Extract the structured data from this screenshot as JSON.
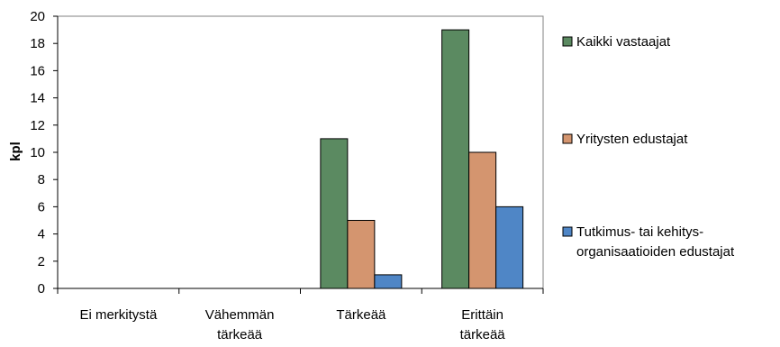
{
  "chart_data": {
    "type": "bar",
    "title": "",
    "xlabel": "",
    "ylabel": "kpl",
    "ylim": [
      0,
      20
    ],
    "yticks": [
      0,
      2,
      4,
      6,
      8,
      10,
      12,
      14,
      16,
      18,
      20
    ],
    "grid": false,
    "legend_position": "right",
    "categories": [
      [
        "Ei merkitystä"
      ],
      [
        "Vähemmän",
        "tärkeää"
      ],
      [
        "Tärkeää"
      ],
      [
        "Erittäin",
        "tärkeää"
      ]
    ],
    "series": [
      {
        "name": [
          "Kaikki vastaajat"
        ],
        "color": "#5b8a61",
        "values": [
          0,
          0,
          11,
          19
        ]
      },
      {
        "name": [
          "Yritysten edustajat"
        ],
        "color": "#d4956f",
        "values": [
          0,
          0,
          5,
          10
        ]
      },
      {
        "name": [
          "Tutkimus- tai kehitys-",
          "organisaatioiden edustajat"
        ],
        "color": "#4f86c6",
        "values": [
          0,
          0,
          1,
          6
        ]
      }
    ]
  }
}
